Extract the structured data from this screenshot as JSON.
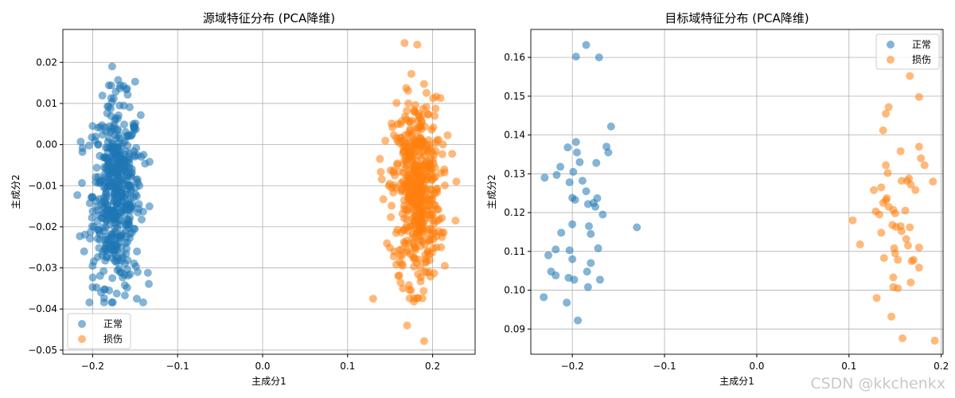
{
  "watermark": "CSDN @kkchenkx",
  "chart_data": [
    {
      "type": "scatter",
      "title": "源域特征分布 (PCA降维)",
      "xlabel": "主成分1",
      "ylabel": "主成分2",
      "xlim": [
        -0.235,
        0.25
      ],
      "ylim": [
        -0.051,
        0.028
      ],
      "xticks": [
        -0.2,
        -0.1,
        0.0,
        0.1,
        0.2
      ],
      "xtick_labels": [
        "−0.2",
        "−0.1",
        "0.0",
        "0.1",
        "0.2"
      ],
      "yticks": [
        -0.05,
        -0.04,
        -0.03,
        -0.02,
        -0.01,
        0.0,
        0.01,
        0.02
      ],
      "ytick_labels": [
        "−0.05",
        "−0.04",
        "−0.03",
        "−0.02",
        "−0.01",
        "0.00",
        "0.01",
        "0.02"
      ],
      "grid": true,
      "legend_position": "bottom-left",
      "series": [
        {
          "name": "正常",
          "color": "#1f77b4",
          "alpha": 0.55,
          "cluster": {
            "x_mean": -0.172,
            "x_sd": 0.014,
            "y_mean": -0.012,
            "y_sd": 0.011,
            "n": 500
          },
          "points": [
            [
              -0.177,
              0.019
            ],
            [
              -0.15,
              0.0153
            ],
            [
              -0.17,
              0.0157
            ],
            [
              -0.2,
              0.0045
            ],
            [
              -0.212,
              -0.0018
            ],
            [
              -0.218,
              -0.0123
            ],
            [
              -0.2,
              -0.0347
            ],
            [
              -0.19,
              -0.036
            ],
            [
              -0.162,
              -0.0367
            ],
            [
              -0.148,
              -0.0375
            ],
            [
              -0.147,
              -0.031
            ],
            [
              -0.135,
              -0.0312
            ],
            [
              -0.133,
              -0.0042
            ],
            [
              -0.14,
              -0.0025
            ],
            [
              -0.215,
              -0.0223
            ],
            [
              -0.21,
              -0.026
            ],
            [
              -0.145,
              -0.01
            ],
            [
              -0.2,
              -0.0295
            ]
          ]
        },
        {
          "name": "损伤",
          "color": "#ff7f0e",
          "alpha": 0.55,
          "cluster": {
            "x_mean": 0.181,
            "x_sd": 0.014,
            "y_mean": -0.011,
            "y_sd": 0.011,
            "n": 500
          },
          "points": [
            [
              0.167,
              0.0247
            ],
            [
              0.182,
              0.0243
            ],
            [
              0.175,
              0.0172
            ],
            [
              0.138,
              -0.0035
            ],
            [
              0.142,
              -0.0133
            ],
            [
              0.228,
              -0.009
            ],
            [
              0.227,
              -0.0185
            ],
            [
              0.13,
              -0.0375
            ],
            [
              0.178,
              -0.0382
            ],
            [
              0.17,
              -0.044
            ],
            [
              0.19,
              -0.0478
            ],
            [
              0.155,
              -0.026
            ],
            [
              0.21,
              -0.025
            ],
            [
              0.205,
              0.001
            ],
            [
              0.165,
              -0.035
            ]
          ]
        }
      ]
    },
    {
      "type": "scatter",
      "title": "目标域特征分布 (PCA降维)",
      "xlabel": "主成分1",
      "ylabel": "主成分2",
      "xlim": [
        -0.245,
        0.202
      ],
      "ylim": [
        0.0835,
        0.1672
      ],
      "xticks": [
        -0.2,
        -0.1,
        0.0,
        0.1,
        0.2
      ],
      "xtick_labels": [
        "−0.2",
        "−0.1",
        "0.0",
        "0.1",
        "0.2"
      ],
      "yticks": [
        0.09,
        0.1,
        0.11,
        0.12,
        0.13,
        0.14,
        0.15,
        0.16
      ],
      "ytick_labels": [
        "0.09",
        "0.10",
        "0.11",
        "0.12",
        "0.13",
        "0.14",
        "0.15",
        "0.16"
      ],
      "grid": true,
      "legend_position": "top-right",
      "series": [
        {
          "name": "正常",
          "color": "#1f77b4",
          "alpha": 0.55,
          "points": [
            [
              -0.185,
              0.1632
            ],
            [
              -0.196,
              0.1602
            ],
            [
              -0.171,
              0.16
            ],
            [
              -0.158,
              0.1422
            ],
            [
              -0.163,
              0.137
            ],
            [
              -0.161,
              0.1355
            ],
            [
              -0.196,
              0.1382
            ],
            [
              -0.195,
              0.1355
            ],
            [
              -0.205,
              0.1368
            ],
            [
              -0.213,
              0.1318
            ],
            [
              -0.192,
              0.133
            ],
            [
              -0.174,
              0.1328
            ],
            [
              -0.199,
              0.1305
            ],
            [
              -0.217,
              0.1297
            ],
            [
              -0.23,
              0.129
            ],
            [
              -0.203,
              0.1278
            ],
            [
              -0.189,
              0.1282
            ],
            [
              -0.185,
              0.1255
            ],
            [
              -0.2,
              0.1238
            ],
            [
              -0.197,
              0.1233
            ],
            [
              -0.173,
              0.1237
            ],
            [
              -0.183,
              0.1222
            ],
            [
              -0.177,
              0.1225
            ],
            [
              -0.175,
              0.1215
            ],
            [
              -0.167,
              0.1195
            ],
            [
              -0.2,
              0.117
            ],
            [
              -0.182,
              0.1165
            ],
            [
              -0.13,
              0.1162
            ],
            [
              -0.212,
              0.1148
            ],
            [
              -0.18,
              0.1145
            ],
            [
              -0.172,
              0.1108
            ],
            [
              -0.218,
              0.1105
            ],
            [
              -0.203,
              0.1103
            ],
            [
              -0.226,
              0.109
            ],
            [
              -0.2,
              0.108
            ],
            [
              -0.18,
              0.107
            ],
            [
              -0.223,
              0.1048
            ],
            [
              -0.184,
              0.1048
            ],
            [
              -0.218,
              0.1038
            ],
            [
              -0.204,
              0.1032
            ],
            [
              -0.198,
              0.1027
            ],
            [
              -0.17,
              0.1027
            ],
            [
              -0.183,
              0.1008
            ],
            [
              -0.231,
              0.0982
            ],
            [
              -0.206,
              0.0968
            ],
            [
              -0.194,
              0.0922
            ]
          ]
        },
        {
          "name": "损伤",
          "color": "#ff7f0e",
          "alpha": 0.55,
          "points": [
            [
              0.166,
              0.1552
            ],
            [
              0.176,
              0.1498
            ],
            [
              0.143,
              0.1472
            ],
            [
              0.14,
              0.1455
            ],
            [
              0.137,
              0.1412
            ],
            [
              0.176,
              0.137
            ],
            [
              0.156,
              0.1358
            ],
            [
              0.178,
              0.134
            ],
            [
              0.14,
              0.1322
            ],
            [
              0.142,
              0.1302
            ],
            [
              0.165,
              0.1288
            ],
            [
              0.182,
              0.1322
            ],
            [
              0.157,
              0.1282
            ],
            [
              0.163,
              0.1282
            ],
            [
              0.167,
              0.1272
            ],
            [
              0.191,
              0.128
            ],
            [
              0.135,
              0.1265
            ],
            [
              0.172,
              0.1258
            ],
            [
              0.127,
              0.1258
            ],
            [
              0.141,
              0.1237
            ],
            [
              0.14,
              0.1232
            ],
            [
              0.137,
              0.1225
            ],
            [
              0.143,
              0.1215
            ],
            [
              0.148,
              0.1207
            ],
            [
              0.15,
              0.1198
            ],
            [
              0.133,
              0.1195
            ],
            [
              0.129,
              0.1203
            ],
            [
              0.161,
              0.1205
            ],
            [
              0.104,
              0.118
            ],
            [
              0.156,
              0.1165
            ],
            [
              0.151,
              0.1163
            ],
            [
              0.147,
              0.1168
            ],
            [
              0.166,
              0.1162
            ],
            [
              0.157,
              0.1152
            ],
            [
              0.135,
              0.1148
            ],
            [
              0.162,
              0.1132
            ],
            [
              0.112,
              0.1118
            ],
            [
              0.164,
              0.1115
            ],
            [
              0.176,
              0.111
            ],
            [
              0.149,
              0.1108
            ],
            [
              0.15,
              0.1095
            ],
            [
              0.138,
              0.1083
            ],
            [
              0.153,
              0.1078
            ],
            [
              0.168,
              0.1075
            ],
            [
              0.17,
              0.1078
            ],
            [
              0.176,
              0.1058
            ],
            [
              0.148,
              0.1033
            ],
            [
              0.167,
              0.102
            ],
            [
              0.148,
              0.1008
            ],
            [
              0.153,
              0.1005
            ],
            [
              0.13,
              0.098
            ],
            [
              0.146,
              0.0932
            ],
            [
              0.158,
              0.0876
            ],
            [
              0.193,
              0.087
            ]
          ]
        }
      ]
    }
  ]
}
